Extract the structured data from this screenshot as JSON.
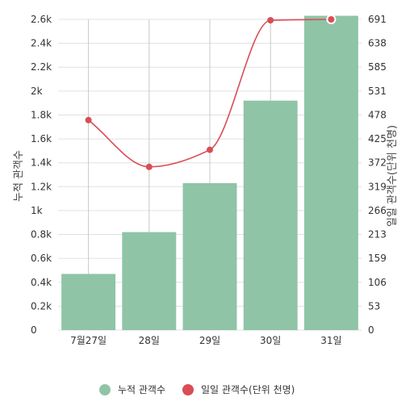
{
  "chart_data": {
    "type": "bar",
    "categories": [
      "7월27일",
      "28일",
      "29일",
      "30일",
      "31일"
    ],
    "series": [
      {
        "name": "누적 관객수",
        "type": "bar",
        "axis": "left",
        "color": "#8fc4a7",
        "values": [
          470,
          820,
          1230,
          1920,
          2630
        ]
      },
      {
        "name": "일일 관객수(단위 천명)",
        "type": "line",
        "axis": "right",
        "color": "#d94d55",
        "values": [
          467,
          363,
          401,
          689,
          691
        ]
      }
    ],
    "ylabel_left": "누적 관객수",
    "ylabel_right": "일일 관객수(단위 천명)",
    "ylim_left": [
      0,
      2600
    ],
    "ylim_right": [
      0,
      691
    ],
    "yticks_left": [
      "0",
      "0.2k",
      "0.4k",
      "0.6k",
      "0.8k",
      "1k",
      "1.2k",
      "1.4k",
      "1.6k",
      "1.8k",
      "2k",
      "2.2k",
      "2.4k",
      "2.6k"
    ],
    "yticks_right": [
      "0",
      "53",
      "106",
      "159",
      "213",
      "266",
      "319",
      "372",
      "425",
      "478",
      "531",
      "585",
      "638",
      "691"
    ],
    "grid": true,
    "legend": "bottom"
  }
}
